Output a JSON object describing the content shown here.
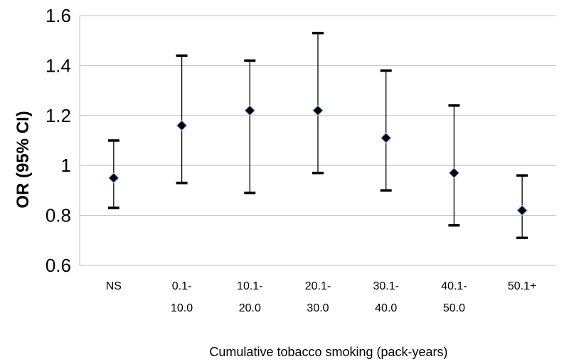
{
  "chart_data": {
    "type": "scatter",
    "title": "",
    "xlabel": "Cumulative tobacco smoking (pack-years)",
    "ylabel": "OR (95% CI)",
    "ylim": [
      0.6,
      1.6
    ],
    "yticks": [
      "0.6",
      "0.8",
      "1",
      "1.2",
      "1.4",
      "1.6"
    ],
    "grid": "horizontal",
    "categories": [
      {
        "line1": "NS",
        "line2": ""
      },
      {
        "line1": "0.1-",
        "line2": "10.0"
      },
      {
        "line1": "10.1-",
        "line2": "20.0"
      },
      {
        "line1": "20.1-",
        "line2": "30.0"
      },
      {
        "line1": "30.1-",
        "line2": "40.0"
      },
      {
        "line1": "40.1-",
        "line2": "50.0"
      },
      {
        "line1": "50.1+",
        "line2": ""
      }
    ],
    "or": [
      0.95,
      1.16,
      1.22,
      1.22,
      1.11,
      0.97,
      0.82
    ],
    "ci_low": [
      0.83,
      0.93,
      0.89,
      0.97,
      0.9,
      0.76,
      0.71
    ],
    "ci_high": [
      1.1,
      1.44,
      1.42,
      1.53,
      1.38,
      1.24,
      0.96
    ],
    "marker_fill": "#000000",
    "marker_stroke": "#8db3e2",
    "grid_color": "#bfbfbf"
  }
}
